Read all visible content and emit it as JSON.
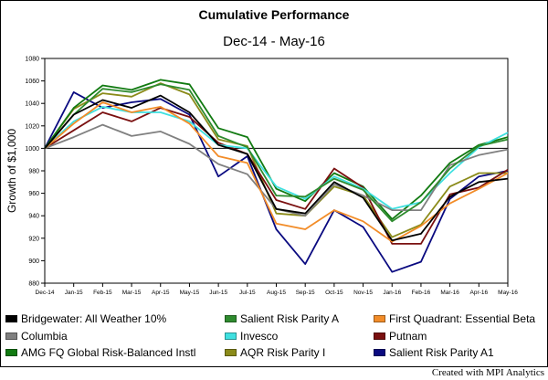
{
  "chart_data": {
    "type": "line",
    "title": "Cumulative Performance",
    "subtitle": "Dec-14 - May-16",
    "xlabel": "",
    "ylabel": "Growth of $1,000",
    "categories": [
      "Dec-14",
      "Jan-15",
      "Feb-15",
      "Mar-15",
      "Apr-15",
      "May-15",
      "Jun-15",
      "Jul-15",
      "Aug-15",
      "Sep-15",
      "Oct-15",
      "Nov-15",
      "Jan-16",
      "Feb-16",
      "Mar-16",
      "Apr-16",
      "May-16"
    ],
    "yticks": [
      880,
      900,
      920,
      940,
      960,
      980,
      1000,
      1020,
      1040,
      1060,
      1080
    ],
    "ylim": [
      880,
      1080
    ],
    "reference_line": 1000,
    "grid": false,
    "legend_position": "bottom",
    "series": [
      {
        "name": "Bridgewater: All Weather 10%",
        "color": "#000000",
        "values": [
          1000,
          1030,
          1043,
          1036,
          1047,
          1032,
          1003,
          995,
          946,
          942,
          970,
          956,
          918,
          924,
          957,
          970,
          973
        ]
      },
      {
        "name": "Salient Risk Parity A",
        "color": "#2e8b2e",
        "values": [
          1000,
          1030,
          1053,
          1050,
          1057,
          1052,
          1011,
          1001,
          958,
          957,
          973,
          963,
          935,
          952,
          982,
          1002,
          1008
        ]
      },
      {
        "name": "First Quadrant: Essential Beta",
        "color": "#f28c28",
        "values": [
          1000,
          1022,
          1041,
          1032,
          1037,
          1022,
          993,
          987,
          933,
          928,
          945,
          935,
          917,
          931,
          951,
          964,
          978
        ]
      },
      {
        "name": "Columbia",
        "color": "#808080",
        "values": [
          1000,
          1010,
          1021,
          1011,
          1015,
          1004,
          986,
          977,
          946,
          940,
          968,
          958,
          945,
          945,
          985,
          994,
          999
        ]
      },
      {
        "name": "Invesco",
        "color": "#3fe0e0",
        "values": [
          1000,
          1024,
          1037,
          1032,
          1032,
          1024,
          1003,
          1000,
          966,
          955,
          975,
          964,
          946,
          952,
          978,
          1001,
          1014
        ]
      },
      {
        "name": "Putnam",
        "color": "#7a1010",
        "values": [
          1000,
          1016,
          1032,
          1024,
          1036,
          1028,
          1005,
          995,
          954,
          946,
          982,
          965,
          915,
          915,
          959,
          965,
          981
        ]
      },
      {
        "name": "AMG FQ Global Risk-Balanced Instl",
        "color": "#117a11",
        "values": [
          1000,
          1036,
          1056,
          1052,
          1061,
          1057,
          1018,
          1010,
          964,
          953,
          978,
          966,
          937,
          958,
          987,
          1003,
          1010
        ]
      },
      {
        "name": "AQR Risk Parity I",
        "color": "#8b8b1a",
        "values": [
          1000,
          1035,
          1049,
          1046,
          1058,
          1048,
          1008,
          1002,
          942,
          940,
          966,
          958,
          921,
          932,
          966,
          978,
          978
        ]
      },
      {
        "name": "Salient Risk Parity A1",
        "color": "#0a0a80",
        "values": [
          1000,
          1050,
          1036,
          1041,
          1044,
          1030,
          975,
          993,
          928,
          897,
          945,
          930,
          890,
          899,
          955,
          975,
          980
        ]
      }
    ]
  },
  "credit": "Created with MPI Analytics"
}
